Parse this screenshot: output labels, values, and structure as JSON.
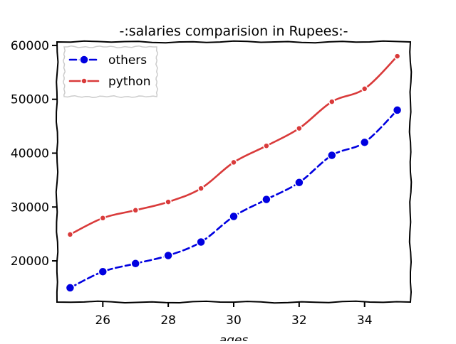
{
  "chart_data": {
    "type": "line",
    "title": "-:salaries comparision in Rupees:-",
    "xlabel": "ages",
    "ylabel": "",
    "x": [
      25,
      26,
      27,
      28,
      29,
      30,
      31,
      32,
      33,
      34,
      35
    ],
    "xlim": [
      24.6,
      35.4
    ],
    "ylim": [
      12350,
      60650
    ],
    "xticks": [
      "26",
      "28",
      "30",
      "32",
      "34"
    ],
    "yticks": [
      "20000",
      "30000",
      "40000",
      "50000",
      "60000"
    ],
    "legend_position": "upper-left",
    "grid": false,
    "series": [
      {
        "name": "others",
        "color": "#0000e0",
        "line_style": "dashed",
        "marker": "circle",
        "values": [
          15000,
          18000,
          19500,
          21000,
          23500,
          28250,
          31400,
          34550,
          39600,
          42000,
          48000
        ]
      },
      {
        "name": "python",
        "color": "#d93a3a",
        "line_style": "solid",
        "marker": "dot",
        "values": [
          24900,
          27950,
          29400,
          30950,
          33450,
          38300,
          41350,
          44600,
          49550,
          51950,
          58000
        ]
      }
    ]
  }
}
